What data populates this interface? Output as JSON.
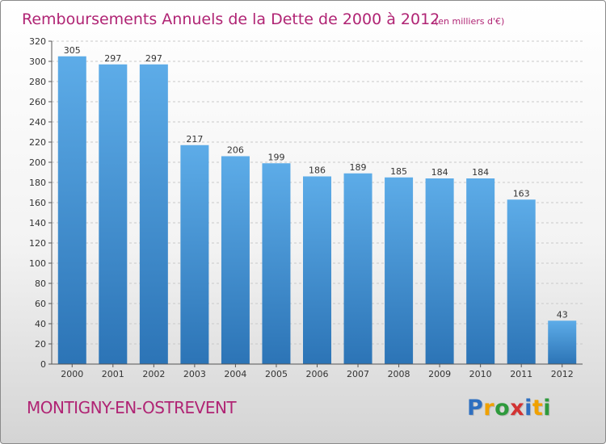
{
  "colors": {
    "accent": "#b02474",
    "bar_top": "#5dace8",
    "bar_bottom": "#2c74b6",
    "grid": "#c9c9c9",
    "axis": "#555555"
  },
  "commune": "MONTIGNY-EN-OSTREVENT",
  "logo": {
    "letters": [
      {
        "ch": "P",
        "color": "#2e6fc0"
      },
      {
        "ch": "r",
        "color": "#f0a100"
      },
      {
        "ch": "o",
        "color": "#2e9a3c"
      },
      {
        "ch": "x",
        "color": "#d23333"
      },
      {
        "ch": "i",
        "color": "#2e6fc0"
      },
      {
        "ch": "t",
        "color": "#f0a100"
      },
      {
        "ch": "i",
        "color": "#2e9a3c"
      }
    ]
  },
  "chart_data": {
    "type": "bar",
    "title": "Remboursements Annuels de la Dette de 2000 à 2012",
    "subtitle": "(en milliers d'€)",
    "xlabel": "",
    "ylabel": "",
    "categories": [
      "2000",
      "2001",
      "2002",
      "2003",
      "2004",
      "2005",
      "2006",
      "2007",
      "2008",
      "2009",
      "2010",
      "2011",
      "2012"
    ],
    "values": [
      305,
      297,
      297,
      217,
      206,
      199,
      186,
      189,
      185,
      184,
      184,
      163,
      43
    ],
    "ylim": [
      0,
      320
    ],
    "yticks": [
      0,
      20,
      40,
      60,
      80,
      100,
      120,
      140,
      160,
      180,
      200,
      220,
      240,
      260,
      280,
      300,
      320
    ],
    "grid": true,
    "legend": "none"
  }
}
